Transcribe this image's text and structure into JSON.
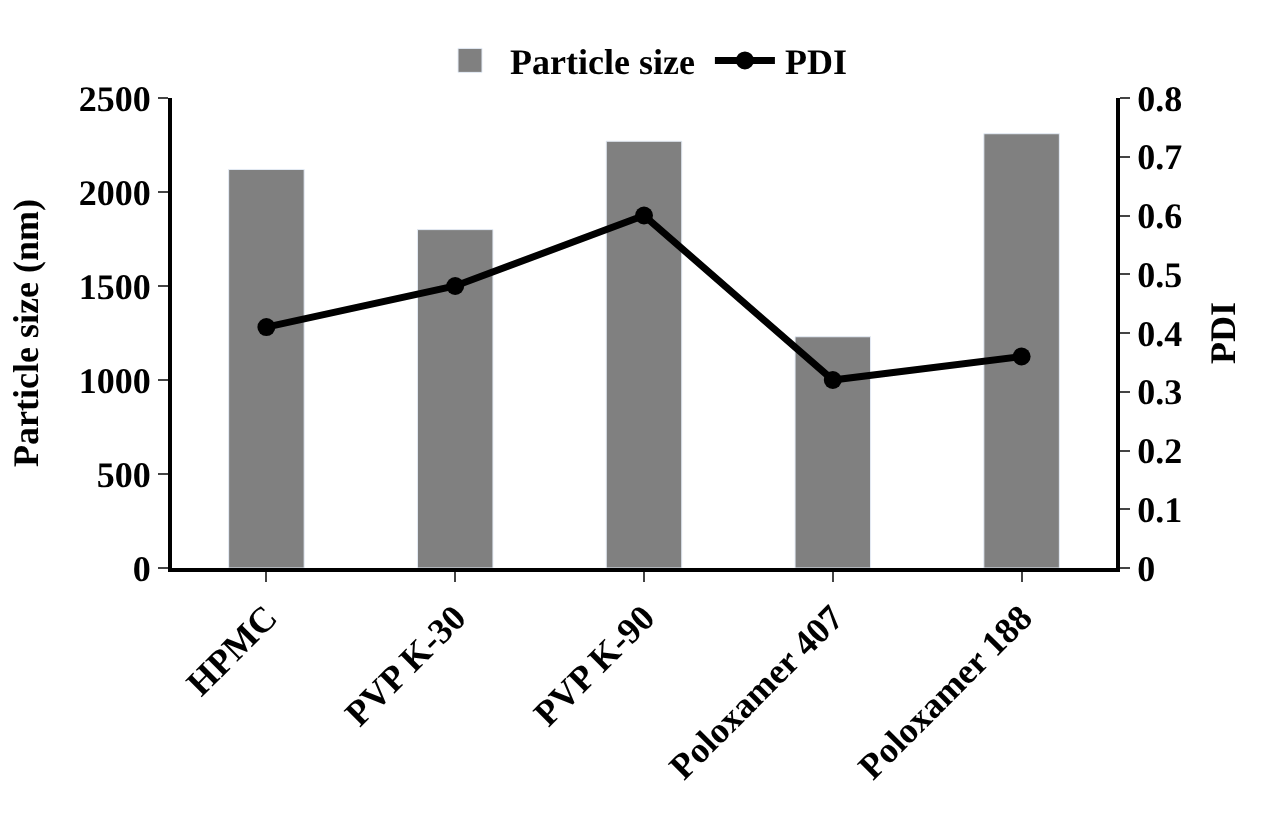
{
  "chart_data": {
    "type": "bar",
    "categories": [
      "HPMC",
      "PVP K-30",
      "PVP K-90",
      "Poloxamer 407",
      "Poloxamer 188"
    ],
    "series": [
      {
        "name": "Particle size",
        "color": "#808080",
        "values": [
          2120,
          1800,
          2270,
          1230,
          2310
        ]
      },
      {
        "name": "PDI",
        "type": "line",
        "axis": "y2",
        "color": "#000000",
        "values": [
          0.41,
          0.48,
          0.6,
          0.32,
          0.36
        ]
      }
    ],
    "ylabel": "Particle size (nm)",
    "y2label": "PDI",
    "ylim": [
      0,
      2500
    ],
    "yticks": [
      0,
      500,
      1000,
      1500,
      2000,
      2500
    ],
    "y2lim": [
      0,
      0.8
    ],
    "y2ticks": [
      {
        "value": 0,
        "label": "0"
      },
      0.1,
      0.2,
      0.3,
      0.4,
      0.5,
      0.6,
      0.7,
      0.8
    ],
    "marker": "circle",
    "line_style": "solid",
    "legend": "top"
  }
}
